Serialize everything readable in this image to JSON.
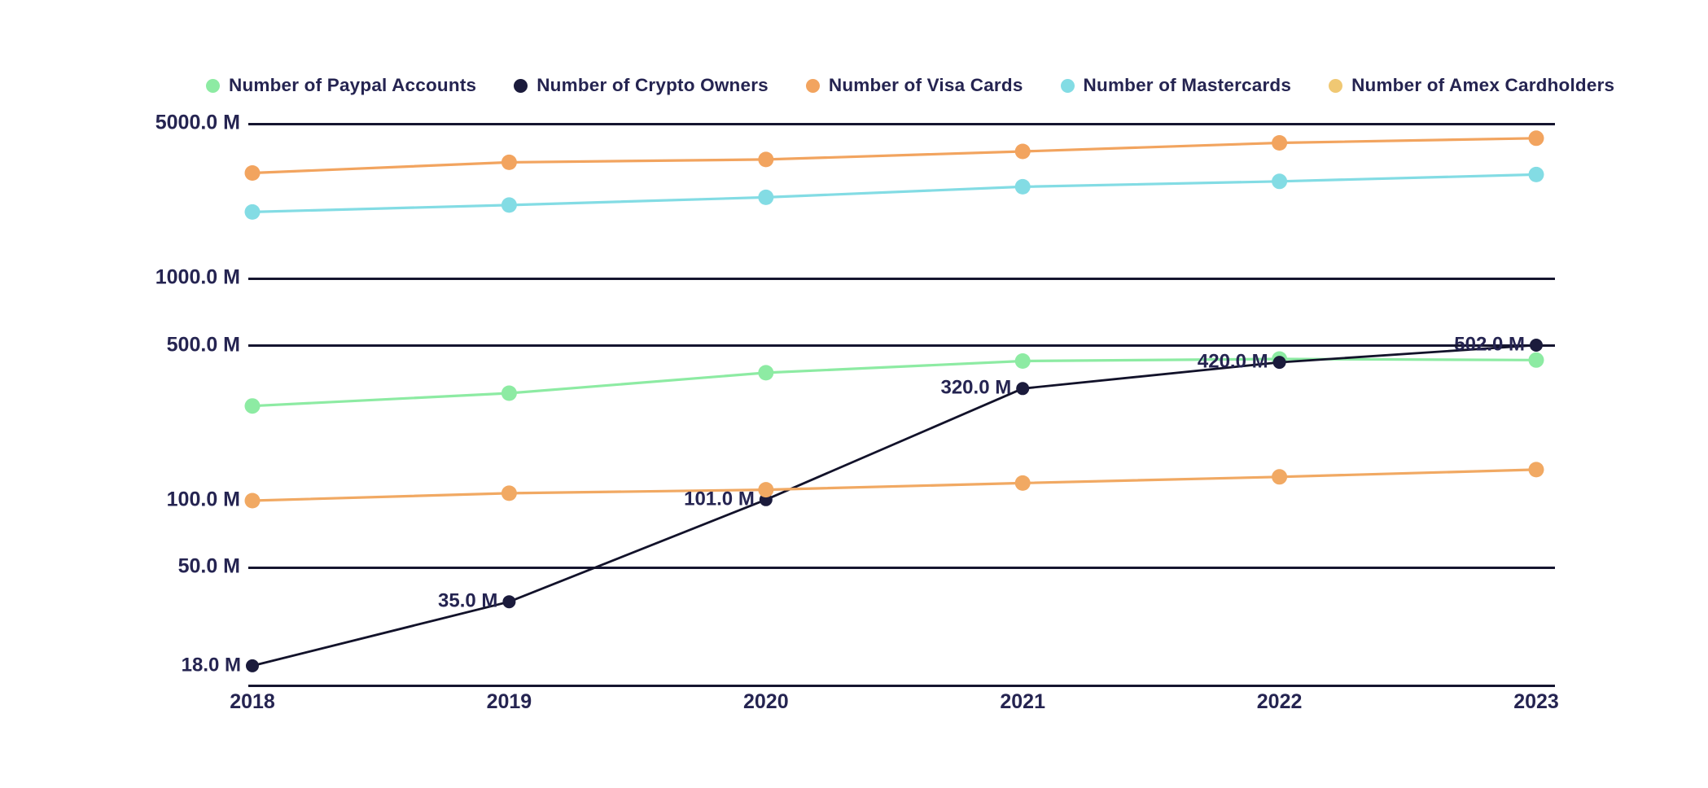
{
  "chart_data": {
    "type": "line",
    "title": "",
    "xlabel": "",
    "ylabel": "",
    "unit": "M",
    "x": [
      "2018",
      "2019",
      "2020",
      "2021",
      "2022",
      "2023"
    ],
    "y_axis": {
      "scale": "log",
      "range_top": 5000,
      "range_bottom": 15,
      "ticks": [
        {
          "label": "5000.0 M",
          "value": 5000,
          "line": true
        },
        {
          "label": "1000.0 M",
          "value": 1000,
          "line": true
        },
        {
          "label": "500.0 M",
          "value": 500,
          "line": true
        },
        {
          "label": "100.0 M",
          "value": 100,
          "line": false
        },
        {
          "label": "50.0 M",
          "value": 50,
          "line": true
        }
      ]
    },
    "legend_position": "top",
    "grid": "horizontal-only",
    "background": "#FFFFFF",
    "text_color": "#252451",
    "axis_color": "#15152F",
    "series": [
      {
        "key": "paypal",
        "name": "Number of Paypal Accounts",
        "color": "#8DEBA3",
        "values": [
          267,
          305,
          377,
          426,
          435,
          430
        ]
      },
      {
        "key": "crypto",
        "name": "Number of Crypto Owners",
        "color": "#1B1B3C",
        "line_color": "#12122A",
        "values": [
          18,
          35,
          101,
          320,
          420,
          502
        ],
        "point_labels": [
          "18.0 M",
          "35.0 M",
          "101.0 M",
          "320.0 M",
          "420.0 M",
          "502.0 M"
        ]
      },
      {
        "key": "visa",
        "name": "Number of Visa Cards",
        "color": "#F2A45F",
        "values": [
          3000,
          3350,
          3450,
          3750,
          4100,
          4300
        ]
      },
      {
        "key": "mastercard",
        "name": "Number of Mastercards",
        "color": "#83DCE4",
        "values": [
          2000,
          2150,
          2330,
          2600,
          2750,
          2950
        ]
      },
      {
        "key": "amex",
        "name": "Number of Amex Cardholders",
        "color": "#F1A963",
        "legend_color": "#F0C873",
        "values": [
          100,
          108,
          112,
          120,
          128,
          138
        ]
      }
    ]
  }
}
